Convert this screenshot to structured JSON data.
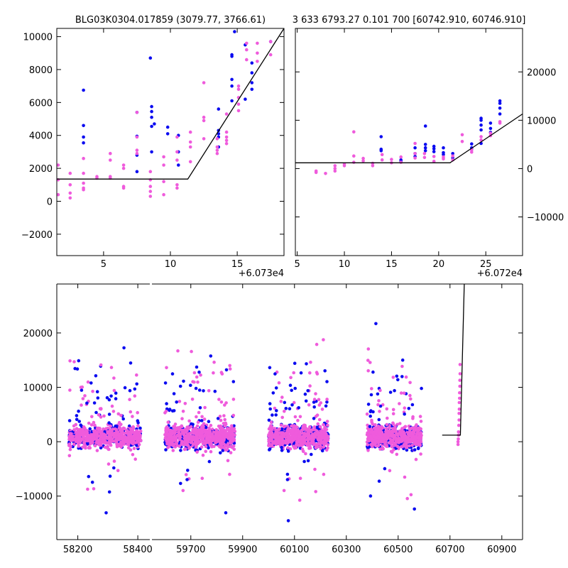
{
  "colors": {
    "blue": "#0a0af0",
    "pink": "#ef5bdc",
    "model": "#000000"
  },
  "chart_data": [
    {
      "type": "scatter",
      "title": "BLG03K0304.017859 (3079.77, 3766.61)",
      "xlim": [
        1.5,
        18.5
      ],
      "ylim": [
        -3300,
        10500
      ],
      "x_offset_label": "+6.073e4",
      "xticks": [
        5,
        10,
        15
      ],
      "yticks": [
        -2000,
        0,
        2000,
        4000,
        6000,
        8000,
        10000
      ],
      "ytick_labels": [
        "−2000",
        "0",
        "2000",
        "4000",
        "6000",
        "8000",
        "10000"
      ],
      "ytick_side": "left",
      "series": [
        {
          "color": "blue",
          "points": [
            [
              3.5,
              6750
            ],
            [
              3.5,
              4600
            ],
            [
              3.5,
              3900
            ],
            [
              3.5,
              3550
            ],
            [
              7.5,
              5400
            ],
            [
              7.5,
              3950
            ],
            [
              7.5,
              2800
            ],
            [
              7.5,
              1800
            ],
            [
              8.5,
              8700
            ],
            [
              8.6,
              5750
            ],
            [
              8.6,
              5450
            ],
            [
              8.6,
              5100
            ],
            [
              8.6,
              4550
            ],
            [
              8.6,
              3000
            ],
            [
              8.8,
              4700
            ],
            [
              9.8,
              4500
            ],
            [
              9.8,
              4100
            ],
            [
              10.6,
              4000
            ],
            [
              10.6,
              3000
            ],
            [
              10.6,
              2200
            ],
            [
              13.6,
              5600
            ],
            [
              13.6,
              4300
            ],
            [
              13.6,
              4100
            ],
            [
              13.6,
              3900
            ],
            [
              13.6,
              3300
            ],
            [
              14.6,
              8900
            ],
            [
              14.6,
              8800
            ],
            [
              14.6,
              7400
            ],
            [
              14.6,
              7000
            ],
            [
              14.6,
              6100
            ],
            [
              14.8,
              10300
            ],
            [
              15.6,
              9500
            ],
            [
              15.6,
              6200
            ],
            [
              16.1,
              8400
            ],
            [
              16.1,
              7800
            ],
            [
              16.1,
              7200
            ],
            [
              16.1,
              6800
            ],
            [
              17.5,
              9700
            ]
          ]
        },
        {
          "color": "pink",
          "points": [
            [
              1.6,
              2200
            ],
            [
              1.6,
              1300
            ],
            [
              1.6,
              400
            ],
            [
              2.5,
              1700
            ],
            [
              2.5,
              1000
            ],
            [
              2.5,
              500
            ],
            [
              2.5,
              200
            ],
            [
              3.5,
              2600
            ],
            [
              3.5,
              1700
            ],
            [
              3.5,
              1100
            ],
            [
              3.5,
              800
            ],
            [
              3.5,
              700
            ],
            [
              4.5,
              1500
            ],
            [
              4.5,
              1400
            ],
            [
              5.5,
              2900
            ],
            [
              5.5,
              2500
            ],
            [
              5.5,
              1500
            ],
            [
              5.5,
              1400
            ],
            [
              6.5,
              2200
            ],
            [
              6.5,
              2000
            ],
            [
              6.5,
              900
            ],
            [
              6.5,
              800
            ],
            [
              7.5,
              5400
            ],
            [
              7.5,
              3900
            ],
            [
              7.5,
              3100
            ],
            [
              7.5,
              2900
            ],
            [
              8.5,
              1800
            ],
            [
              8.5,
              1300
            ],
            [
              8.5,
              900
            ],
            [
              8.5,
              600
            ],
            [
              8.5,
              300
            ],
            [
              9.5,
              2700
            ],
            [
              9.5,
              2200
            ],
            [
              9.5,
              1200
            ],
            [
              9.5,
              400
            ],
            [
              10.5,
              3900
            ],
            [
              10.5,
              3000
            ],
            [
              10.5,
              2500
            ],
            [
              10.5,
              1000
            ],
            [
              10.5,
              800
            ],
            [
              11.5,
              4200
            ],
            [
              11.5,
              3600
            ],
            [
              11.5,
              3300
            ],
            [
              11.5,
              2400
            ],
            [
              12.5,
              7200
            ],
            [
              12.5,
              5100
            ],
            [
              12.5,
              4900
            ],
            [
              12.5,
              3800
            ],
            [
              13.5,
              3800
            ],
            [
              13.5,
              3300
            ],
            [
              13.5,
              3100
            ],
            [
              13.5,
              2900
            ],
            [
              14.2,
              5300
            ],
            [
              14.2,
              4200
            ],
            [
              14.2,
              3900
            ],
            [
              14.2,
              3700
            ],
            [
              14.2,
              3500
            ],
            [
              15.1,
              7000
            ],
            [
              15.1,
              6800
            ],
            [
              15.1,
              6300
            ],
            [
              15.1,
              5900
            ],
            [
              15.1,
              5500
            ],
            [
              15.7,
              9600
            ],
            [
              15.7,
              9200
            ],
            [
              15.7,
              8600
            ],
            [
              16.5,
              9600
            ],
            [
              16.5,
              9000
            ],
            [
              16.5,
              8500
            ],
            [
              17.5,
              9700
            ],
            [
              17.5,
              8900
            ]
          ]
        }
      ],
      "model_line": [
        [
          1.5,
          1350
        ],
        [
          11.3,
          1350
        ],
        [
          18.5,
          10500
        ]
      ]
    },
    {
      "type": "scatter",
      "title": "3 633 6793.27 0.101 700 [60742.910, 60746.910]",
      "xlim": [
        4.8,
        28.9
      ],
      "ylim": [
        -18000,
        29000
      ],
      "x_offset_label": "+6.072e4",
      "xticks": [
        5,
        10,
        15,
        20,
        25
      ],
      "yticks": [
        -10000,
        0,
        10000,
        20000
      ],
      "ytick_labels": [
        "−10000",
        "0",
        "10000",
        "20000"
      ],
      "ytick_side": "right",
      "series": [
        {
          "color": "blue",
          "points": [
            [
              13.9,
              6600
            ],
            [
              13.9,
              4000
            ],
            [
              13.9,
              3700
            ],
            [
              16.0,
              1800
            ],
            [
              16.0,
              1500
            ],
            [
              17.5,
              4300
            ],
            [
              17.5,
              3100
            ],
            [
              17.5,
              2500
            ],
            [
              18.6,
              8800
            ],
            [
              18.6,
              5000
            ],
            [
              18.6,
              4300
            ],
            [
              18.6,
              3700
            ],
            [
              19.5,
              4600
            ],
            [
              19.5,
              4100
            ],
            [
              19.5,
              3500
            ],
            [
              20.5,
              4300
            ],
            [
              20.5,
              3300
            ],
            [
              20.5,
              2900
            ],
            [
              21.5,
              3100
            ],
            [
              21.5,
              2200
            ],
            [
              23.5,
              5100
            ],
            [
              23.5,
              4300
            ],
            [
              23.5,
              3900
            ],
            [
              24.5,
              10400
            ],
            [
              24.5,
              10000
            ],
            [
              24.5,
              9000
            ],
            [
              24.5,
              8000
            ],
            [
              24.5,
              5200
            ],
            [
              25.5,
              9400
            ],
            [
              25.5,
              8300
            ],
            [
              25.5,
              7500
            ],
            [
              26.5,
              14000
            ],
            [
              26.5,
              13500
            ],
            [
              26.5,
              12500
            ],
            [
              26.5,
              11300
            ]
          ]
        },
        {
          "color": "pink",
          "points": [
            [
              7.0,
              -500
            ],
            [
              7.0,
              -800
            ],
            [
              8.0,
              -1000
            ],
            [
              9.0,
              -500
            ],
            [
              9.0,
              0
            ],
            [
              9.0,
              600
            ],
            [
              10.0,
              600
            ],
            [
              10.0,
              900
            ],
            [
              11.0,
              7600
            ],
            [
              11.0,
              2600
            ],
            [
              11.0,
              1300
            ],
            [
              12.0,
              2100
            ],
            [
              12.0,
              1600
            ],
            [
              13.0,
              1100
            ],
            [
              13.0,
              600
            ],
            [
              14.0,
              2900
            ],
            [
              14.0,
              1800
            ],
            [
              15.0,
              1900
            ],
            [
              15.0,
              1200
            ],
            [
              16.0,
              2400
            ],
            [
              16.0,
              1300
            ],
            [
              17.5,
              5200
            ],
            [
              17.5,
              3100
            ],
            [
              17.5,
              2200
            ],
            [
              18.5,
              3100
            ],
            [
              18.5,
              2300
            ],
            [
              19.5,
              2500
            ],
            [
              19.5,
              1500
            ],
            [
              20.5,
              2400
            ],
            [
              20.5,
              2000
            ],
            [
              21.5,
              2600
            ],
            [
              21.5,
              1800
            ],
            [
              22.5,
              7000
            ],
            [
              22.5,
              5600
            ],
            [
              23.5,
              3900
            ],
            [
              23.5,
              3400
            ],
            [
              24.5,
              6600
            ],
            [
              24.5,
              5900
            ],
            [
              25.5,
              7300
            ],
            [
              25.5,
              6800
            ],
            [
              26.5,
              9700
            ],
            [
              26.5,
              9400
            ]
          ]
        }
      ],
      "model_line": [
        [
          4.8,
          1200
        ],
        [
          21.2,
          1200
        ],
        [
          28.9,
          11300
        ]
      ]
    },
    {
      "type": "scatter",
      "title": "",
      "broken_x_axis": true,
      "segments": [
        {
          "xlim": [
            58130,
            58440
          ],
          "xticks": [
            58200,
            58400
          ]
        },
        {
          "xlim": [
            59550,
            60980
          ],
          "xticks": [
            59700,
            59900,
            60100,
            60300,
            60500,
            60700,
            60900
          ]
        }
      ],
      "ylim": [
        -18000,
        29000
      ],
      "yticks": [
        -10000,
        0,
        10000,
        20000
      ],
      "ytick_labels": [
        "−10000",
        "0",
        "10000",
        "20000"
      ],
      "ytick_side": "left",
      "seasons": [
        {
          "x_range": [
            58170,
            58410
          ],
          "n": 520,
          "core_sd": 1400,
          "extra_sd": 9000
        },
        {
          "x_range": [
            59600,
            59870
          ],
          "n": 560,
          "core_sd": 1500,
          "extra_sd": 10000
        },
        {
          "x_range": [
            60000,
            60230
          ],
          "n": 520,
          "core_sd": 1500,
          "extra_sd": 10000
        },
        {
          "x_range": [
            60380,
            60590
          ],
          "n": 480,
          "core_sd": 1500,
          "extra_sd": 9500
        }
      ],
      "outbreak_points": [
        [
          60731,
          0
        ],
        [
          60731,
          -500
        ],
        [
          60732,
          500
        ],
        [
          60733,
          1200
        ],
        [
          60733,
          1800
        ],
        [
          60734,
          3000
        ],
        [
          60735,
          4000
        ],
        [
          60735,
          5200
        ],
        [
          60736,
          6000
        ],
        [
          60736,
          7200
        ],
        [
          60737,
          8000
        ],
        [
          60737,
          9000
        ],
        [
          60738,
          10200
        ],
        [
          60738,
          11300
        ],
        [
          60739,
          12500
        ],
        [
          60739,
          14200
        ]
      ],
      "model_line": [
        [
          60670,
          1200
        ],
        [
          60740,
          1200
        ],
        [
          60755,
          29000
        ]
      ]
    }
  ]
}
